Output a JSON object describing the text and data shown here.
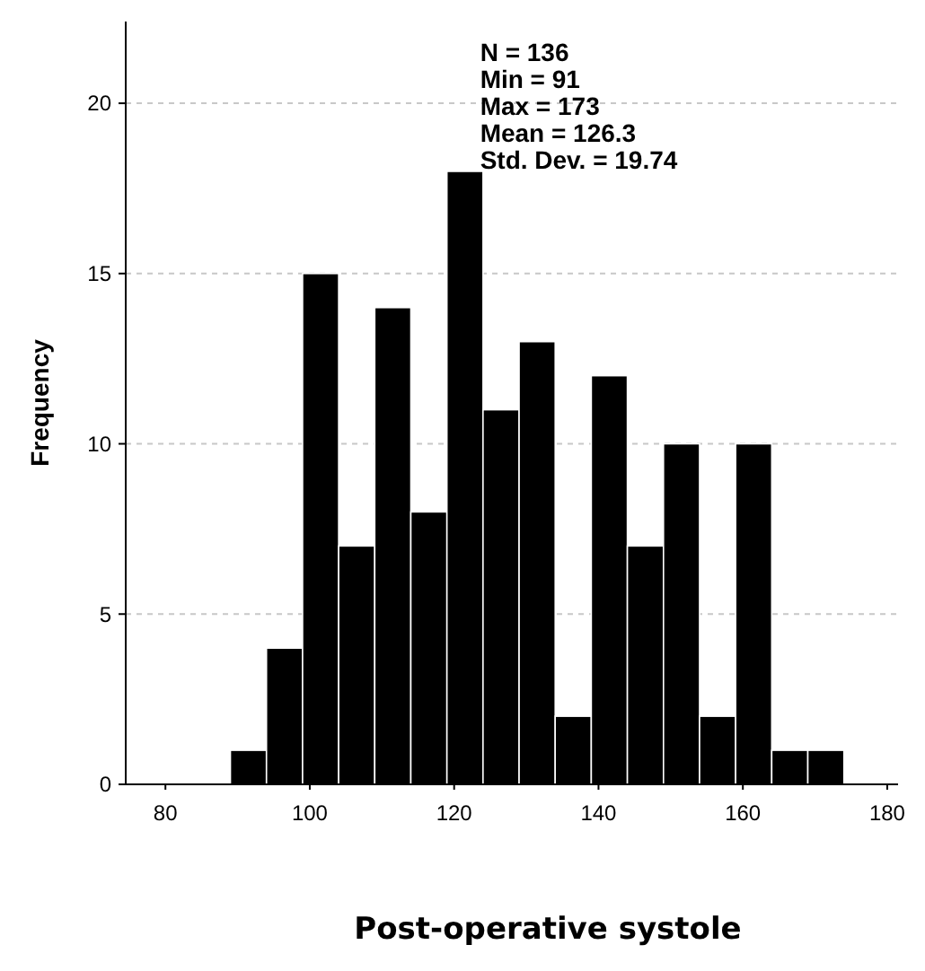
{
  "chart_data": {
    "type": "histogram",
    "xlabel": "Post-operative systole",
    "ylabel": "Frequency",
    "bins": [
      89,
      94,
      99,
      104,
      109,
      114,
      119,
      124,
      129,
      134,
      139,
      144,
      149,
      154,
      159,
      164,
      169,
      174
    ],
    "values": [
      1,
      4,
      15,
      7,
      14,
      8,
      18,
      11,
      13,
      2,
      12,
      7,
      10,
      2,
      10,
      1,
      1
    ],
    "color": "#000000",
    "xlim": [
      74.5,
      181.5
    ],
    "xticks": [
      80,
      100,
      120,
      140,
      160,
      180
    ],
    "ylim": [
      0,
      22.4
    ],
    "yticks": [
      0,
      5,
      10,
      15,
      20
    ],
    "grid": "y",
    "annotations": [
      "N = 136",
      "Min = 91",
      "Max = 173",
      "Mean = 126.3",
      "Std. Dev. = 19.74"
    ]
  }
}
